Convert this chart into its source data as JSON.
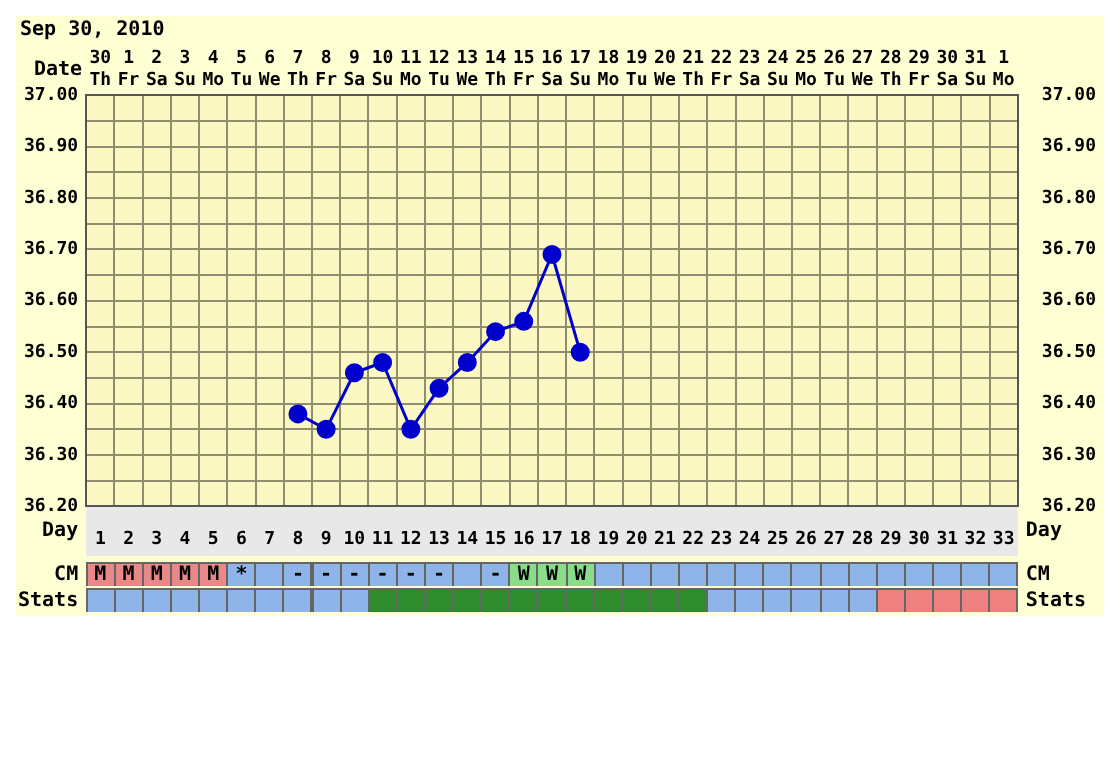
{
  "chart_data": {
    "type": "line",
    "title": "Sep 30, 2010",
    "xlabel": "Date",
    "x2label": "Day",
    "categories": [
      "30 Th",
      "1 Fr",
      "2 Sa",
      "3 Su",
      "4 Mo",
      "5 Tu",
      "6 We",
      "7 Th",
      "8 Fr",
      "9 Sa",
      "10 Su",
      "11 Mo",
      "12 Tu",
      "13 We",
      "14 Th",
      "15 Fr",
      "16 Sa",
      "17 Su",
      "18 Mo",
      "19 Tu",
      "20 We",
      "21 Th",
      "22 Fr",
      "23 Sa",
      "24 Su",
      "25 Mo",
      "26 Tu",
      "27 We",
      "28 Th",
      "29 Fr",
      "30 Sa",
      "31 Su",
      "1 Mo"
    ],
    "series": [
      {
        "color": "#0000cc",
        "values": [
          null,
          null,
          null,
          null,
          null,
          null,
          null,
          36.38,
          36.35,
          36.46,
          36.48,
          36.35,
          36.43,
          36.48,
          36.54,
          36.56,
          36.69,
          36.5,
          null,
          null,
          null,
          null,
          null,
          null,
          null,
          null,
          null,
          null,
          null,
          null,
          null,
          null,
          null
        ]
      }
    ],
    "x2lim": [
      0.5,
      33.5
    ],
    "x2ticks": [
      1,
      2,
      3,
      4,
      5,
      6,
      7,
      8,
      9,
      10,
      11,
      12,
      13,
      14,
      15,
      16,
      17,
      18,
      19,
      20,
      21,
      22,
      23,
      24,
      25,
      26,
      27,
      28,
      29,
      30,
      31,
      32,
      33
    ],
    "ylim": [
      36.2,
      37.0
    ],
    "yticks": [
      {
        "value": 36.2,
        "label": "36.20"
      },
      {
        "value": 36.25,
        "label": null
      },
      {
        "value": 36.3,
        "label": "36.30"
      },
      {
        "value": 36.35,
        "label": null
      },
      {
        "value": 36.4,
        "label": "36.40"
      },
      {
        "value": 36.45,
        "label": null
      },
      {
        "value": 36.5,
        "label": "36.50"
      },
      {
        "value": 36.55,
        "label": null
      },
      {
        "value": 36.6,
        "label": "36.60"
      },
      {
        "value": 36.65,
        "label": null
      },
      {
        "value": 36.7,
        "label": "36.70"
      },
      {
        "value": 36.75,
        "label": null
      },
      {
        "value": 36.8,
        "label": "36.80"
      },
      {
        "value": 36.85,
        "label": null
      },
      {
        "value": 36.9,
        "label": "36.90"
      },
      {
        "value": 36.95,
        "label": null
      },
      {
        "value": 37.0,
        "label": "37.00"
      }
    ],
    "y2lim": [
      36.2,
      37.0
    ],
    "y2ticks": [
      {
        "value": 36.2,
        "label": "36.20"
      },
      {
        "value": 36.25,
        "label": null
      },
      {
        "value": 36.3,
        "label": "36.30"
      },
      {
        "value": 36.35,
        "label": null
      },
      {
        "value": 36.4,
        "label": "36.40"
      },
      {
        "value": 36.45,
        "label": null
      },
      {
        "value": 36.5,
        "label": "36.50"
      },
      {
        "value": 36.55,
        "label": null
      },
      {
        "value": 36.6,
        "label": "36.60"
      },
      {
        "value": 36.65,
        "label": null
      },
      {
        "value": 36.7,
        "label": "36.70"
      },
      {
        "value": 36.75,
        "label": null
      },
      {
        "value": 36.8,
        "label": "36.80"
      },
      {
        "value": 36.85,
        "label": null
      },
      {
        "value": 36.9,
        "label": "36.90"
      },
      {
        "value": 36.95,
        "label": null
      },
      {
        "value": 37.0,
        "label": "37.00"
      }
    ],
    "grid": true,
    "marker": "circle",
    "line_style": "solid",
    "legend": false,
    "annotations": [
      "CM",
      "Stats",
      "M",
      "M",
      "M",
      "M",
      "M",
      "*",
      "-",
      "-",
      "-",
      "-",
      "-",
      "-",
      "-",
      "W",
      "W",
      "W"
    ]
  }
}
